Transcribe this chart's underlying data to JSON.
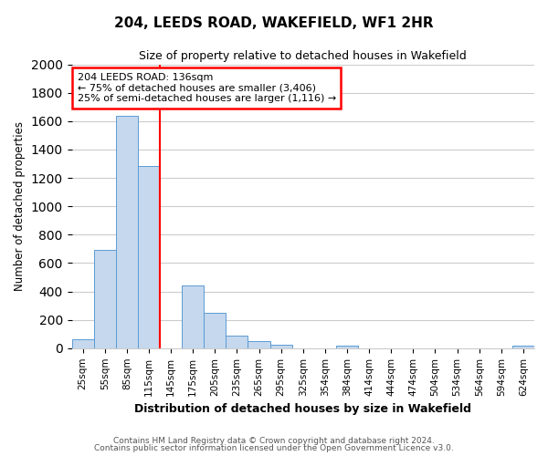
{
  "title": "204, LEEDS ROAD, WAKEFIELD, WF1 2HR",
  "subtitle": "Size of property relative to detached houses in Wakefield",
  "xlabel": "Distribution of detached houses by size in Wakefield",
  "ylabel": "Number of detached properties",
  "bar_color": "#c5d8ed",
  "bar_edge_color": "#5b9bd5",
  "bin_labels": [
    "25sqm",
    "55sqm",
    "85sqm",
    "115sqm",
    "145sqm",
    "175sqm",
    "205sqm",
    "235sqm",
    "265sqm",
    "295sqm",
    "325sqm",
    "354sqm",
    "384sqm",
    "414sqm",
    "444sqm",
    "474sqm",
    "504sqm",
    "534sqm",
    "564sqm",
    "594sqm",
    "624sqm"
  ],
  "bar_heights": [
    65,
    695,
    1635,
    1285,
    0,
    440,
    250,
    88,
    50,
    25,
    0,
    0,
    15,
    0,
    0,
    0,
    0,
    0,
    0,
    0,
    20
  ],
  "ylim": [
    0,
    2000
  ],
  "yticks": [
    0,
    200,
    400,
    600,
    800,
    1000,
    1200,
    1400,
    1600,
    1800,
    2000
  ],
  "vline_x": 4,
  "vline_color": "red",
  "annotation_text": "204 LEEDS ROAD: 136sqm\n← 75% of detached houses are smaller (3,406)\n25% of semi-detached houses are larger (1,116) →",
  "annotation_box_color": "white",
  "annotation_box_edge": "red",
  "footer_line1": "Contains HM Land Registry data © Crown copyright and database right 2024.",
  "footer_line2": "Contains public sector information licensed under the Open Government Licence v3.0.",
  "background_color": "#ffffff",
  "grid_color": "#cccccc"
}
